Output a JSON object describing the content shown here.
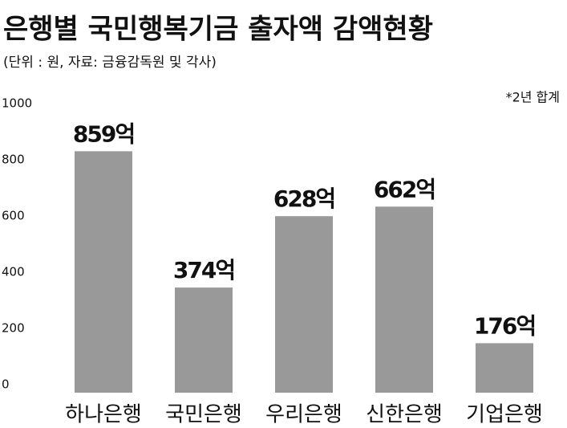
{
  "chart_data": {
    "type": "bar",
    "title": "은행별 국민행복기금 출자액 감액현황",
    "subtitle": "(단위 : 원, 자료: 금융감독원 및 각사)",
    "annotation": "*2년 합계",
    "categories": [
      "하나은행",
      "국민은행",
      "우리은행",
      "신한은행",
      "기업은행"
    ],
    "values": [
      859,
      374,
      628,
      662,
      176
    ],
    "value_labels": [
      "859억",
      "374억",
      "628억",
      "662억",
      "176억"
    ],
    "color": "#999999",
    "ylim": [
      0,
      1000
    ],
    "yticks": [
      0,
      200,
      400,
      600,
      800,
      1000
    ],
    "grid": false
  }
}
